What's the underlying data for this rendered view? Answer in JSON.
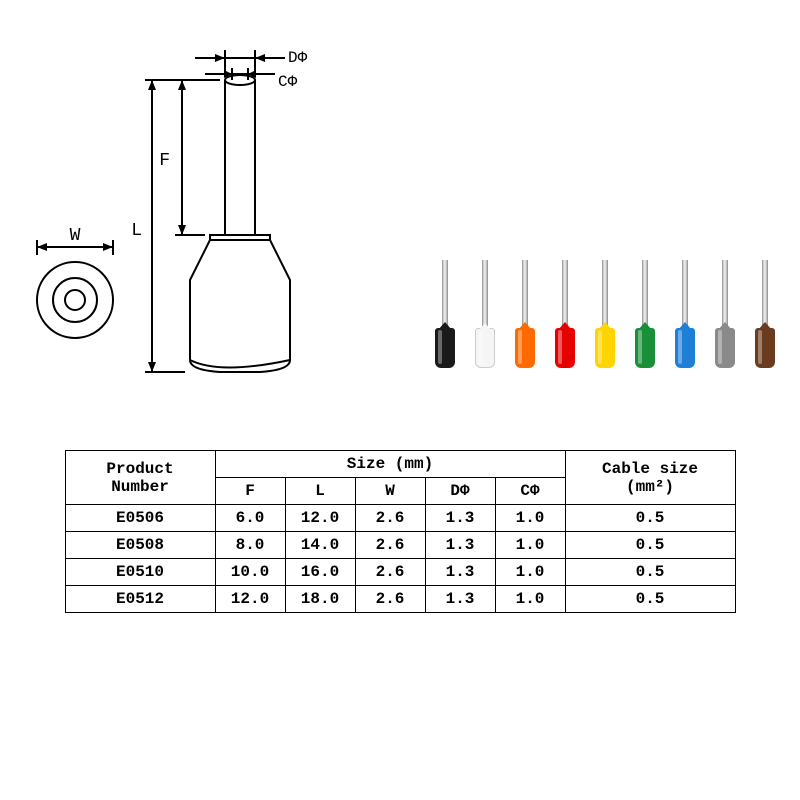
{
  "diagram": {
    "labels": {
      "W": "W",
      "L": "L",
      "F": "F",
      "DPhi": "DΦ",
      "CPhi": "CΦ"
    },
    "stroke": "#000000",
    "stroke_width": 2
  },
  "ferrules": {
    "pin_color_gradient": [
      "#888888",
      "#dddddd",
      "#eeeeee",
      "#cccccc",
      "#888888"
    ],
    "colors": [
      {
        "name": "black",
        "fill": "#1a1a1a"
      },
      {
        "name": "white",
        "fill": "#f5f5f5"
      },
      {
        "name": "orange",
        "fill": "#ff6a00"
      },
      {
        "name": "red",
        "fill": "#e60000"
      },
      {
        "name": "yellow",
        "fill": "#ffd400"
      },
      {
        "name": "green",
        "fill": "#1a8f3a"
      },
      {
        "name": "blue",
        "fill": "#1e7fd6"
      },
      {
        "name": "gray",
        "fill": "#8a8a8a"
      },
      {
        "name": "brown",
        "fill": "#6b3b1f"
      }
    ]
  },
  "table": {
    "header": {
      "product_number": "Product Number",
      "size_group": "Size (mm)",
      "size_cols": [
        "F",
        "L",
        "W",
        "DΦ",
        "CΦ"
      ],
      "cable": "Cable size (mm²)"
    },
    "rows": [
      {
        "pn": "E0506",
        "F": "6.0",
        "L": "12.0",
        "W": "2.6",
        "DPhi": "1.3",
        "CPhi": "1.0",
        "cable": "0.5"
      },
      {
        "pn": "E0508",
        "F": "8.0",
        "L": "14.0",
        "W": "2.6",
        "DPhi": "1.3",
        "CPhi": "1.0",
        "cable": "0.5"
      },
      {
        "pn": "E0510",
        "F": "10.0",
        "L": "16.0",
        "W": "2.6",
        "DPhi": "1.3",
        "CPhi": "1.0",
        "cable": "0.5"
      },
      {
        "pn": "E0512",
        "F": "12.0",
        "L": "18.0",
        "W": "2.6",
        "DPhi": "1.3",
        "CPhi": "1.0",
        "cable": "0.5"
      }
    ],
    "font_size": 16,
    "border_color": "#000000"
  }
}
